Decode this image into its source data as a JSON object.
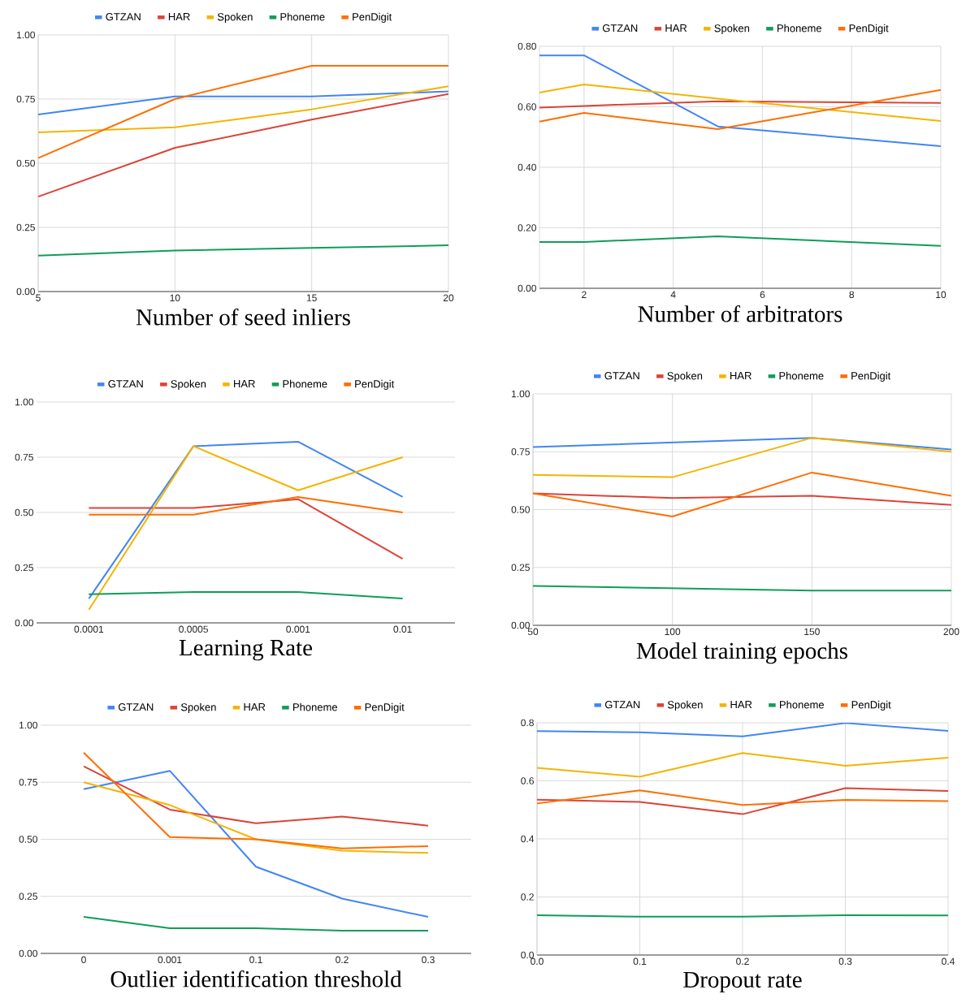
{
  "chart_data": [
    {
      "type": "line",
      "xlabel": "Number of seed inliers",
      "x": [
        5,
        10,
        15,
        20
      ],
      "xlim": [
        5,
        20
      ],
      "xticks": [
        5,
        10,
        15,
        20
      ],
      "ylim": [
        0,
        1
      ],
      "yticks": [
        {
          "value": 0,
          "label": "0.00"
        },
        {
          "value": 0.25,
          "label": "0.25"
        },
        {
          "value": 0.5,
          "label": "0.50"
        },
        {
          "value": 0.75,
          "label": "0.75"
        },
        {
          "value": 1,
          "label": "1.00"
        }
      ],
      "grid": true,
      "legend": "top",
      "series": [
        {
          "name": "GTZAN",
          "color": "#4285f4",
          "values": [
            0.69,
            0.76,
            0.76,
            0.78
          ]
        },
        {
          "name": "HAR",
          "color": "#db4437",
          "values": [
            0.37,
            0.56,
            0.67,
            0.77
          ]
        },
        {
          "name": "Spoken",
          "color": "#f4b400",
          "values": [
            0.62,
            0.64,
            0.71,
            0.8
          ]
        },
        {
          "name": "Phoneme",
          "color": "#0f9d58",
          "values": [
            0.14,
            0.16,
            0.17,
            0.18
          ]
        },
        {
          "name": "PenDigit",
          "color": "#ff6d01",
          "values": [
            0.52,
            0.75,
            0.88,
            0.88
          ]
        }
      ]
    },
    {
      "type": "line",
      "xlabel": "Number of arbitrators",
      "x": [
        1,
        2,
        5,
        10
      ],
      "xlim": [
        1,
        10
      ],
      "xticks": [
        2,
        4,
        6,
        8,
        10
      ],
      "ylim": [
        0,
        0.8
      ],
      "yticks": [
        {
          "value": 0,
          "label": "0.00"
        },
        {
          "value": 0.2,
          "label": "0.20"
        },
        {
          "value": 0.4,
          "label": "0.40"
        },
        {
          "value": 0.6,
          "label": "0.60"
        },
        {
          "value": 0.8,
          "label": "0.80"
        }
      ],
      "grid": true,
      "legend": "top",
      "series": [
        {
          "name": "GTZAN",
          "color": "#4285f4",
          "values": [
            0.77,
            0.77,
            0.535,
            0.47
          ]
        },
        {
          "name": "HAR",
          "color": "#db4437",
          "values": [
            0.597,
            0.603,
            0.618,
            0.613
          ]
        },
        {
          "name": "Spoken",
          "color": "#f4b400",
          "values": [
            0.647,
            0.674,
            0.627,
            0.553
          ]
        },
        {
          "name": "Phoneme",
          "color": "#0f9d58",
          "values": [
            0.153,
            0.153,
            0.172,
            0.14
          ]
        },
        {
          "name": "PenDigit",
          "color": "#ff6d01",
          "values": [
            0.551,
            0.58,
            0.526,
            0.656
          ]
        }
      ]
    },
    {
      "type": "line",
      "xlabel": "Learning Rate",
      "categories": [
        "0.0001",
        "0.0005",
        "0.001",
        "0.01"
      ],
      "ylim": [
        0,
        1
      ],
      "yticks": [
        {
          "value": 0,
          "label": "0.00"
        },
        {
          "value": 0.25,
          "label": "0.25"
        },
        {
          "value": 0.5,
          "label": "0.50"
        },
        {
          "value": 0.75,
          "label": "0.75"
        },
        {
          "value": 1,
          "label": "1.00"
        }
      ],
      "grid": "y",
      "legend": "top",
      "series": [
        {
          "name": "GTZAN",
          "color": "#4285f4",
          "values": [
            0.11,
            0.8,
            0.82,
            0.57
          ]
        },
        {
          "name": "Spoken",
          "color": "#db4437",
          "values": [
            0.52,
            0.52,
            0.56,
            0.29
          ]
        },
        {
          "name": "HAR",
          "color": "#f4b400",
          "values": [
            0.06,
            0.8,
            0.6,
            0.75
          ]
        },
        {
          "name": "Phoneme",
          "color": "#0f9d58",
          "values": [
            0.13,
            0.14,
            0.14,
            0.11
          ]
        },
        {
          "name": "PenDigit",
          "color": "#ff6d01",
          "values": [
            0.49,
            0.49,
            0.57,
            0.5
          ]
        }
      ]
    },
    {
      "type": "line",
      "xlabel": "Model training epochs",
      "x": [
        50,
        100,
        150,
        200
      ],
      "xlim": [
        50,
        200
      ],
      "xticks": [
        50,
        100,
        150,
        200
      ],
      "ylim": [
        0,
        1
      ],
      "yticks": [
        {
          "value": 0,
          "label": "0.00"
        },
        {
          "value": 0.25,
          "label": "0.25"
        },
        {
          "value": 0.5,
          "label": "0.50"
        },
        {
          "value": 0.75,
          "label": "0.75"
        },
        {
          "value": 1,
          "label": "1.00"
        }
      ],
      "grid": true,
      "legend": "top",
      "series": [
        {
          "name": "GTZAN",
          "color": "#4285f4",
          "values": [
            0.77,
            0.79,
            0.81,
            0.76
          ]
        },
        {
          "name": "Spoken",
          "color": "#db4437",
          "values": [
            0.57,
            0.55,
            0.56,
            0.52
          ]
        },
        {
          "name": "HAR",
          "color": "#f4b400",
          "values": [
            0.65,
            0.64,
            0.81,
            0.75
          ]
        },
        {
          "name": "Phoneme",
          "color": "#0f9d58",
          "values": [
            0.17,
            0.16,
            0.15,
            0.15
          ]
        },
        {
          "name": "PenDigit",
          "color": "#ff6d01",
          "values": [
            0.57,
            0.47,
            0.66,
            0.56
          ]
        }
      ]
    },
    {
      "type": "line",
      "xlabel": "Outlier identification threshold",
      "categories": [
        "0",
        "0.001",
        "0.1",
        "0.2",
        "0.3"
      ],
      "ylim": [
        0,
        1
      ],
      "yticks": [
        {
          "value": 0,
          "label": "0.00"
        },
        {
          "value": 0.25,
          "label": "0.25"
        },
        {
          "value": 0.5,
          "label": "0.50"
        },
        {
          "value": 0.75,
          "label": "0.75"
        },
        {
          "value": 1,
          "label": "1.00"
        }
      ],
      "grid": "y",
      "legend": "top",
      "series": [
        {
          "name": "GTZAN",
          "color": "#4285f4",
          "values": [
            0.72,
            0.8,
            0.38,
            0.24,
            0.16
          ]
        },
        {
          "name": "Spoken",
          "color": "#db4437",
          "values": [
            0.82,
            0.63,
            0.57,
            0.6,
            0.56
          ]
        },
        {
          "name": "HAR",
          "color": "#f4b400",
          "values": [
            0.75,
            0.65,
            0.5,
            0.45,
            0.44
          ]
        },
        {
          "name": "Phoneme",
          "color": "#0f9d58",
          "values": [
            0.16,
            0.11,
            0.11,
            0.1,
            0.1
          ]
        },
        {
          "name": "PenDigit",
          "color": "#ff6d01",
          "values": [
            0.88,
            0.51,
            0.5,
            0.46,
            0.47
          ]
        }
      ]
    },
    {
      "type": "line",
      "xlabel": "Dropout rate",
      "x": [
        0,
        0.1,
        0.2,
        0.3,
        0.4
      ],
      "xlim": [
        0,
        0.4
      ],
      "xticks": [
        {
          "value": 0,
          "label": "0.0"
        },
        0.1,
        0.2,
        0.3,
        0.4
      ],
      "ylim": [
        0,
        0.8
      ],
      "yticks": [
        {
          "value": 0,
          "label": "0.0"
        },
        0.2,
        0.4,
        0.6,
        0.8
      ],
      "grid": true,
      "legend": "top",
      "series": [
        {
          "name": "GTZAN",
          "color": "#4285f4",
          "values": [
            0.771,
            0.767,
            0.753,
            0.799,
            0.772
          ]
        },
        {
          "name": "Spoken",
          "color": "#db4437",
          "values": [
            0.535,
            0.527,
            0.485,
            0.575,
            0.565
          ]
        },
        {
          "name": "HAR",
          "color": "#f4b400",
          "values": [
            0.645,
            0.614,
            0.696,
            0.652,
            0.68
          ]
        },
        {
          "name": "Phoneme",
          "color": "#0f9d58",
          "values": [
            0.137,
            0.132,
            0.132,
            0.137,
            0.136
          ]
        },
        {
          "name": "PenDigit",
          "color": "#ff6d01",
          "values": [
            0.522,
            0.567,
            0.517,
            0.534,
            0.53
          ]
        }
      ]
    }
  ]
}
